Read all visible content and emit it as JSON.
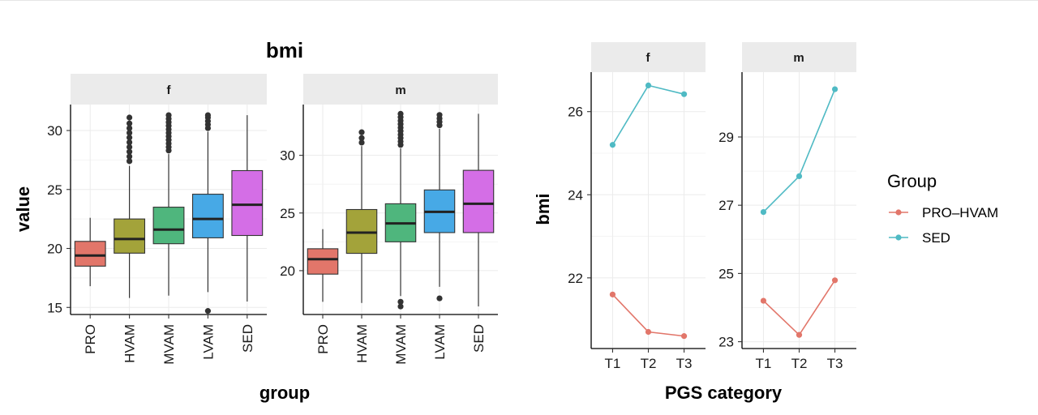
{
  "chart_data": [
    {
      "type": "boxplot",
      "title": "bmi",
      "xlabel": "group",
      "ylabel": "value",
      "categories": [
        "PRO",
        "HVAM",
        "MVAM",
        "LVAM",
        "SED"
      ],
      "colors": [
        "#e2766a",
        "#a3a33a",
        "#4fb67d",
        "#47a9e6",
        "#d46ee6"
      ],
      "grid": "on",
      "panels": [
        {
          "name": "f",
          "ylim": [
            14.4,
            32.2
          ],
          "yticks": [
            15,
            20,
            25,
            30
          ],
          "boxes": [
            {
              "category": "PRO",
              "lower_whisker": 16.8,
              "q1": 18.5,
              "median": 19.4,
              "q3": 20.6,
              "upper_whisker": 22.6,
              "outliers": []
            },
            {
              "category": "HVAM",
              "lower_whisker": 15.8,
              "q1": 19.6,
              "median": 20.8,
              "q3": 22.5,
              "upper_whisker": 27.0,
              "outliers": [
                27.4,
                27.8,
                28.2,
                28.6,
                29.0,
                29.4,
                29.8,
                30.2,
                30.6,
                31.1
              ]
            },
            {
              "category": "MVAM",
              "lower_whisker": 16.0,
              "q1": 20.4,
              "median": 21.6,
              "q3": 23.5,
              "upper_whisker": 28.0,
              "outliers": [
                28.3,
                28.6,
                28.9,
                29.2,
                29.5,
                29.8,
                30.1,
                30.4,
                30.7,
                31.0,
                31.3
              ]
            },
            {
              "category": "LVAM",
              "lower_whisker": 16.3,
              "q1": 20.9,
              "median": 22.5,
              "q3": 24.6,
              "upper_whisker": 29.9,
              "outliers": [
                14.7,
                30.2,
                30.5,
                30.8,
                31.1,
                31.3
              ]
            },
            {
              "category": "SED",
              "lower_whisker": 15.5,
              "q1": 21.1,
              "median": 23.7,
              "q3": 26.6,
              "upper_whisker": 31.3,
              "outliers": []
            }
          ]
        },
        {
          "name": "m",
          "ylim": [
            16.2,
            34.4
          ],
          "yticks": [
            20,
            25,
            30
          ],
          "boxes": [
            {
              "category": "PRO",
              "lower_whisker": 17.3,
              "q1": 19.7,
              "median": 21.0,
              "q3": 21.9,
              "upper_whisker": 23.6,
              "outliers": []
            },
            {
              "category": "HVAM",
              "lower_whisker": 17.2,
              "q1": 21.5,
              "median": 23.3,
              "q3": 25.3,
              "upper_whisker": 30.8,
              "outliers": [
                31.1,
                31.5,
                32.0
              ]
            },
            {
              "category": "MVAM",
              "lower_whisker": 17.8,
              "q1": 22.5,
              "median": 24.1,
              "q3": 25.8,
              "upper_whisker": 30.6,
              "outliers": [
                16.9,
                17.3,
                30.9,
                31.2,
                31.5,
                31.8,
                32.1,
                32.4,
                32.7,
                33.0,
                33.3,
                33.6
              ]
            },
            {
              "category": "LVAM",
              "lower_whisker": 18.6,
              "q1": 23.3,
              "median": 25.1,
              "q3": 27.0,
              "upper_whisker": 32.3,
              "outliers": [
                17.6,
                32.6,
                32.9,
                33.2,
                33.5
              ]
            },
            {
              "category": "SED",
              "lower_whisker": 16.9,
              "q1": 23.3,
              "median": 25.8,
              "q3": 28.7,
              "upper_whisker": 33.6,
              "outliers": []
            }
          ]
        }
      ]
    },
    {
      "type": "line",
      "xlabel": "PGS category",
      "ylabel": "bmi",
      "categories": [
        "T1",
        "T2",
        "T3"
      ],
      "grid": "on",
      "legend": {
        "title": "Group",
        "position": "right"
      },
      "series_styles": [
        {
          "name": "PRO–HVAM",
          "color": "#e2766a"
        },
        {
          "name": "SED",
          "color": "#4fbac4"
        }
      ],
      "panels": [
        {
          "name": "f",
          "ylim": [
            20.3,
            26.95
          ],
          "yticks": [
            22,
            24,
            26
          ],
          "series": [
            {
              "name": "PRO–HVAM",
              "values": [
                21.6,
                20.7,
                20.6
              ]
            },
            {
              "name": "SED",
              "values": [
                25.2,
                26.63,
                26.42
              ]
            }
          ]
        },
        {
          "name": "m",
          "ylim": [
            22.8,
            30.9
          ],
          "yticks": [
            23,
            25,
            27,
            29
          ],
          "series": [
            {
              "name": "PRO–HVAM",
              "values": [
                24.2,
                23.2,
                24.8
              ]
            },
            {
              "name": "SED",
              "values": [
                26.8,
                27.85,
                30.4
              ]
            }
          ]
        }
      ]
    }
  ]
}
